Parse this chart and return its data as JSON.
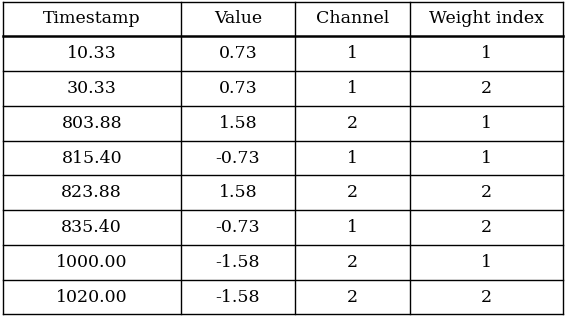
{
  "headers": [
    "Timestamp",
    "Value",
    "Channel",
    "Weight index"
  ],
  "rows": [
    [
      "10.33",
      "0.73",
      "1",
      "1"
    ],
    [
      "30.33",
      "0.73",
      "1",
      "2"
    ],
    [
      "803.88",
      "1.58",
      "2",
      "1"
    ],
    [
      "815.40",
      "-0.73",
      "1",
      "1"
    ],
    [
      "823.88",
      "1.58",
      "2",
      "2"
    ],
    [
      "835.40",
      "-0.73",
      "1",
      "2"
    ],
    [
      "1000.00",
      "-1.58",
      "2",
      "1"
    ],
    [
      "1020.00",
      "-1.58",
      "2",
      "2"
    ]
  ],
  "background_color": "#ffffff",
  "line_color": "#000000",
  "text_color": "#000000",
  "header_fontsize": 12.5,
  "cell_fontsize": 12.5,
  "fig_width": 5.66,
  "fig_height": 3.16,
  "dpi": 100
}
